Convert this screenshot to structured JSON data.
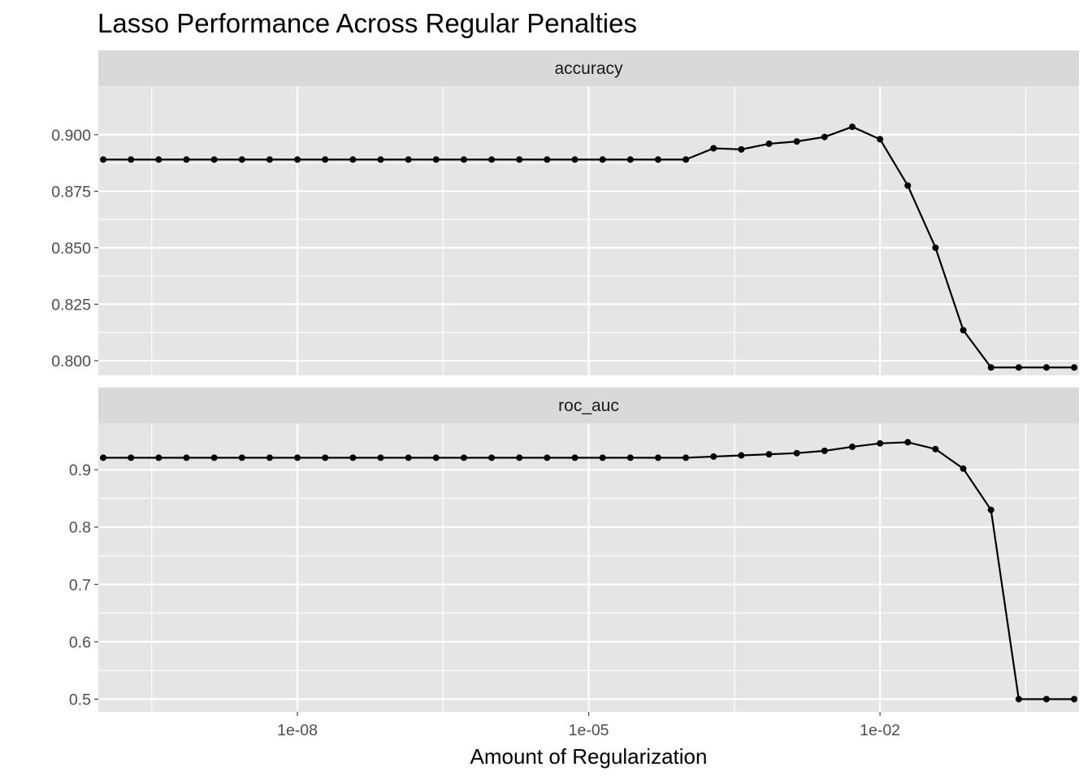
{
  "chart_data": {
    "type": "line",
    "title": "Lasso Performance Across Regular Penalties",
    "xlabel": "Amount of Regularization",
    "x_scale": "log10",
    "x_ticks": [
      {
        "value": 1e-08,
        "label": "1e-08"
      },
      {
        "value": 1e-05,
        "label": "1e-05"
      },
      {
        "value": 0.01,
        "label": "1e-02"
      }
    ],
    "xlim": [
      8.9e-11,
      1.12
    ],
    "grid": true,
    "legend": "none",
    "x": [
      1e-10,
      1.9307e-10,
      3.7276e-10,
      7.1969e-10,
      1.3895e-09,
      2.6827e-09,
      5.1795e-09,
      1e-08,
      1.9307e-08,
      3.7276e-08,
      7.1969e-08,
      1.3895e-07,
      2.6827e-07,
      5.1795e-07,
      1e-06,
      1.9307e-06,
      3.7276e-06,
      7.1969e-06,
      1.3895e-05,
      2.6827e-05,
      5.1795e-05,
      0.0001,
      0.00019307,
      0.00037276,
      0.00071969,
      0.0013895,
      0.0026827,
      0.0051795,
      0.01,
      0.019307,
      0.037276,
      0.071969,
      0.13895,
      0.26827,
      0.51795,
      1
    ],
    "panels": [
      {
        "strip": "accuracy",
        "ylim": [
          0.7935,
          0.9215
        ],
        "y_ticks": [
          "0.800",
          "0.825",
          "0.850",
          "0.875",
          "0.900"
        ],
        "y_tick_values": [
          0.8,
          0.825,
          0.85,
          0.875,
          0.9
        ],
        "values": [
          0.889,
          0.889,
          0.889,
          0.889,
          0.889,
          0.889,
          0.889,
          0.889,
          0.889,
          0.889,
          0.889,
          0.889,
          0.889,
          0.889,
          0.889,
          0.889,
          0.889,
          0.889,
          0.889,
          0.889,
          0.889,
          0.889,
          0.894,
          0.8935,
          0.896,
          0.897,
          0.899,
          0.9035,
          0.898,
          0.8775,
          0.85,
          0.8135,
          0.797,
          0.797,
          0.797,
          0.797
        ]
      },
      {
        "strip": "roc_auc",
        "ylim": [
          0.478,
          0.981
        ],
        "y_ticks": [
          "0.5",
          "0.6",
          "0.7",
          "0.8",
          "0.9"
        ],
        "y_tick_values": [
          0.5,
          0.6,
          0.7,
          0.8,
          0.9
        ],
        "values": [
          0.921,
          0.921,
          0.921,
          0.921,
          0.921,
          0.921,
          0.921,
          0.921,
          0.921,
          0.921,
          0.921,
          0.921,
          0.921,
          0.921,
          0.921,
          0.921,
          0.921,
          0.921,
          0.921,
          0.921,
          0.921,
          0.921,
          0.923,
          0.925,
          0.927,
          0.929,
          0.933,
          0.94,
          0.946,
          0.948,
          0.936,
          0.902,
          0.83,
          0.5,
          0.5,
          0.5
        ]
      }
    ]
  },
  "colors": {
    "panel_bg": "#e5e5e5",
    "strip_bg": "#d9d9d9",
    "grid": "#ffffff",
    "line": "#000000",
    "tick_text": "#4d4d4d"
  }
}
